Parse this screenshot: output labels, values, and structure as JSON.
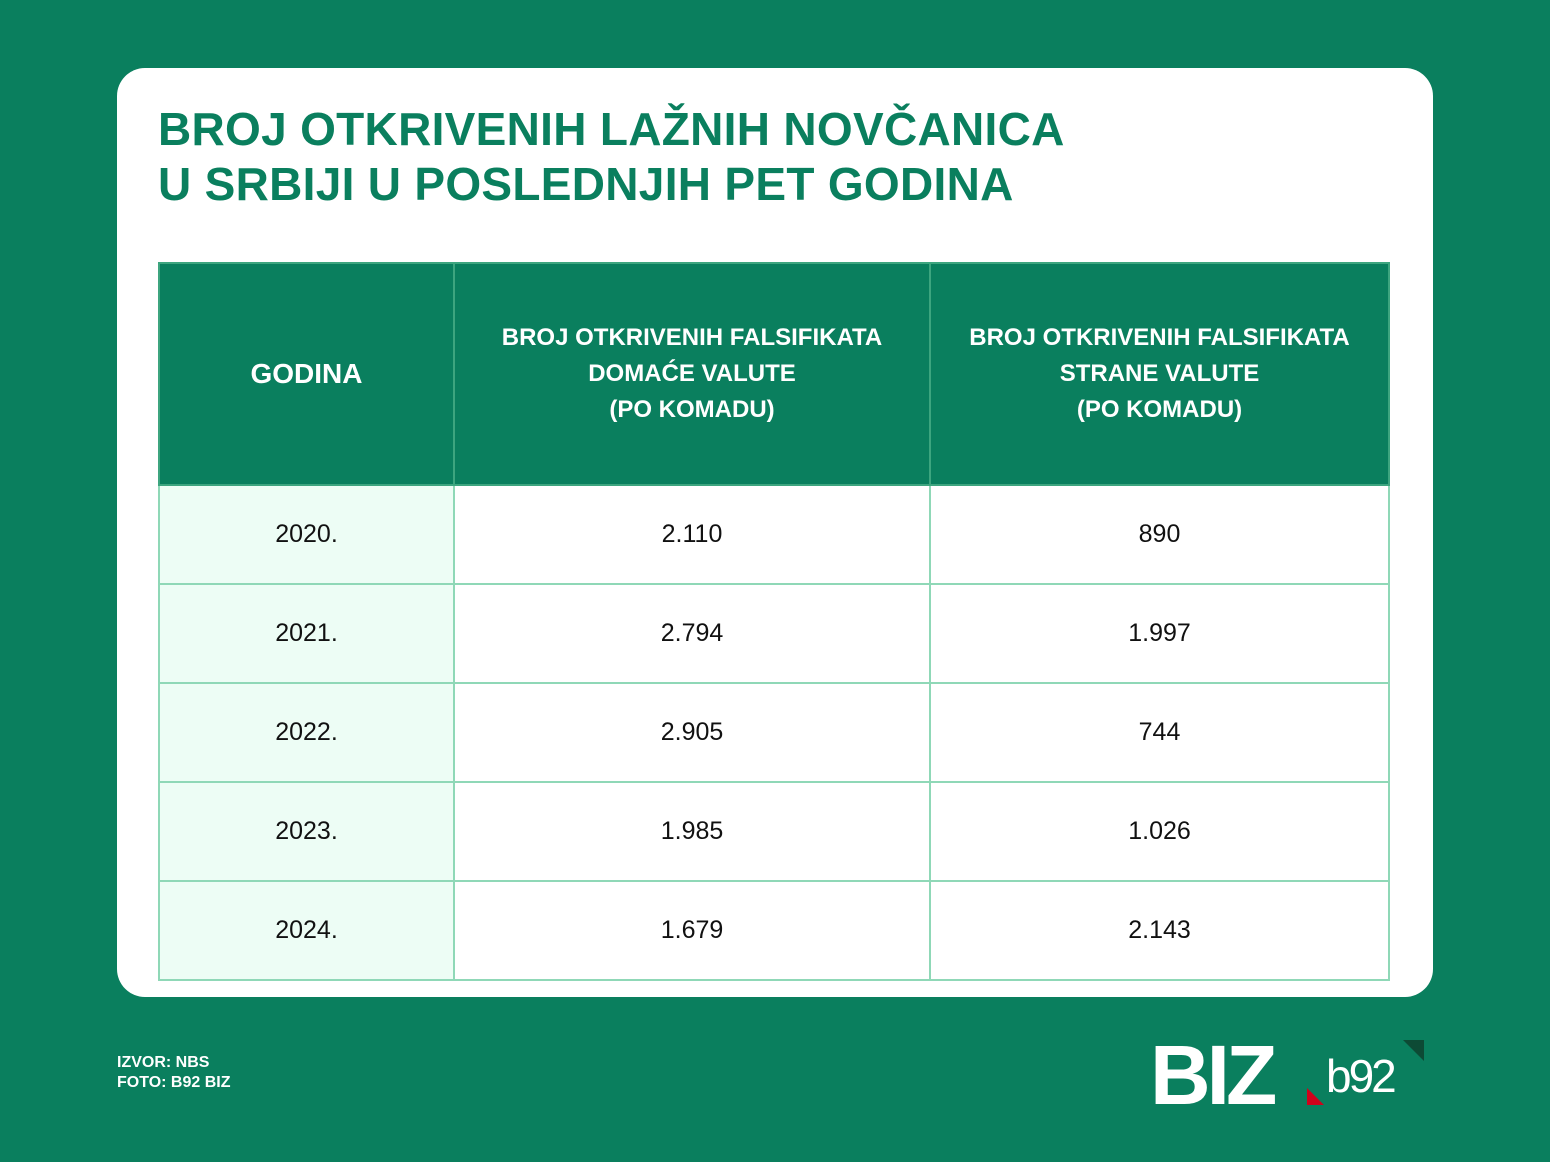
{
  "title": {
    "line1": "BROJ OTKRIVENIH LAŽNIH NOVČANICA",
    "line2": "U SRBIJI U POSLEDNJIH PET GODINA"
  },
  "table": {
    "headers": [
      {
        "lines": [
          "GODINA"
        ]
      },
      {
        "lines": [
          "BROJ OTKRIVENIH FALSIFIKATA",
          "DOMAĆE VALUTE",
          "(PO KOMADU)"
        ]
      },
      {
        "lines": [
          "BROJ OTKRIVENIH FALSIFIKATA",
          "STRANE VALUTE",
          "(PO KOMADU)"
        ]
      }
    ],
    "rows": [
      [
        "2020.",
        "2.110",
        "890"
      ],
      [
        "2021.",
        "2.794",
        "1.997"
      ],
      [
        "2022.",
        "2.905",
        "744"
      ],
      [
        "2023.",
        "1.985",
        "1.026"
      ],
      [
        "2024.",
        "1.679",
        "2.143"
      ]
    ]
  },
  "footer": {
    "source": "IZVOR: NBS",
    "photo": "FOTO: B92 BIZ"
  },
  "logo": {
    "main": "BIZ",
    "sub": "b92"
  },
  "colors": {
    "brand_green": "#0a7f5e",
    "mint": "#edfdf5",
    "border": "#8fd8b7",
    "accent_red": "#d0021b"
  }
}
